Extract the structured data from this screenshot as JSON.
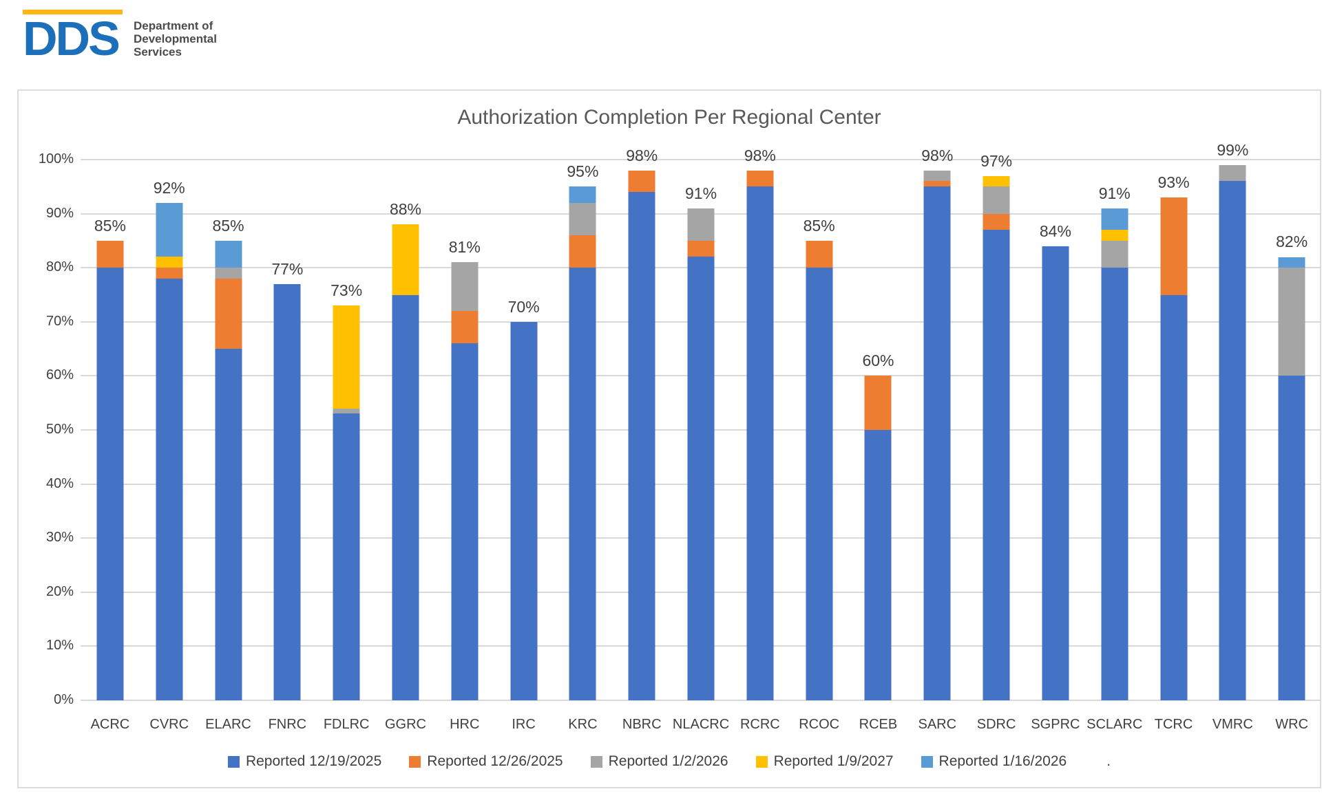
{
  "logo": {
    "acronym": "DDS",
    "department_lines": [
      "Department of",
      "Developmental",
      "Services"
    ],
    "accent_color": "#FDB714",
    "acronym_color": "#1C6FB8"
  },
  "chart_data": {
    "type": "bar",
    "stacked": true,
    "title": "Authorization Completion Per Regional Center",
    "xlabel": "",
    "ylabel": "",
    "categories": [
      "ACRC",
      "CVRC",
      "ELARC",
      "FNRC",
      "FDLRC",
      "GGRC",
      "HRC",
      "IRC",
      "KRC",
      "NBRC",
      "NLACRC",
      "RCRC",
      "RCOC",
      "RCEB",
      "SARC",
      "SDRC",
      "SGPRC",
      "SCLARC",
      "TCRC",
      "VMRC",
      "WRC"
    ],
    "series": [
      {
        "name": "Reported 12/19/2025",
        "color": "#4472C4",
        "values": [
          80,
          78,
          65,
          77,
          53,
          75,
          66,
          70,
          80,
          94,
          82,
          95,
          80,
          50,
          95,
          87,
          84,
          80,
          75,
          96,
          60
        ]
      },
      {
        "name": "Reported 12/26/2025",
        "color": "#ED7D31",
        "values": [
          5,
          2,
          13,
          0,
          0,
          0,
          6,
          0,
          6,
          4,
          3,
          3,
          5,
          10,
          1,
          3,
          0,
          0,
          18,
          0,
          0
        ]
      },
      {
        "name": "Reported 1/2/2026",
        "color": "#A5A5A5",
        "values": [
          0,
          0,
          2,
          0,
          1,
          0,
          9,
          0,
          6,
          0,
          6,
          0,
          0,
          0,
          2,
          5,
          0,
          5,
          0,
          3,
          20
        ]
      },
      {
        "name": "Reported 1/9/2027",
        "color": "#FFC000",
        "values": [
          0,
          2,
          0,
          0,
          19,
          13,
          0,
          0,
          0,
          0,
          0,
          0,
          0,
          0,
          0,
          2,
          0,
          2,
          0,
          0,
          0
        ]
      },
      {
        "name": "Reported 1/16/2026",
        "color": "#5B9BD5",
        "values": [
          0,
          10,
          5,
          0,
          0,
          0,
          0,
          0,
          3,
          0,
          0,
          0,
          0,
          0,
          0,
          0,
          0,
          4,
          0,
          0,
          2
        ]
      }
    ],
    "totals_labels": [
      "85%",
      "92%",
      "85%",
      "77%",
      "73%",
      "88%",
      "81%",
      "70%",
      "95%",
      "98%",
      "91%",
      "98%",
      "85%",
      "60%",
      "98%",
      "97%",
      "84%",
      "91%",
      "93%",
      "99%",
      "82%"
    ],
    "y_axis": {
      "ticks": [
        "100%",
        "90%",
        "80%",
        "70%",
        "60%",
        "50%",
        "40%",
        "30%",
        "20%",
        "10%",
        "0%"
      ],
      "min": 0,
      "max": 100,
      "grid": true
    },
    "legend_position": "bottom",
    "legend_trailing_text": ".",
    "gridline_color": "#D9D9D9"
  }
}
